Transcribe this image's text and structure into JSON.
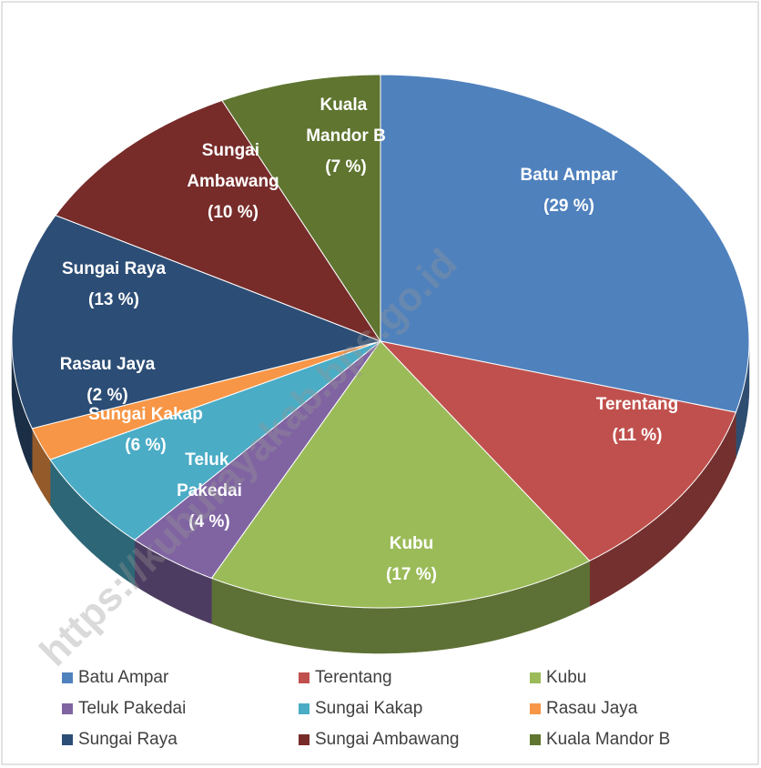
{
  "chart_data": {
    "type": "pie",
    "categories": [
      "Batu Ampar",
      "Terentang",
      "Kubu",
      "Teluk Pakedai",
      "Sungai Kakap",
      "Rasau Jaya",
      "Sungai Raya",
      "Sungai Ambawang",
      "Kuala Mandor B"
    ],
    "values": [
      29,
      11,
      17,
      4,
      6,
      2,
      13,
      10,
      7
    ],
    "value_labels": [
      "(29 %)",
      "(11 %)",
      "(17 %)",
      "(4 %)",
      "(6 %)",
      "(2 %)",
      "(13 %)",
      "(10 %)",
      "(7 %)"
    ],
    "colors": [
      "#4f81bd",
      "#c0504d",
      "#9bbb59",
      "#8064a2",
      "#4bacc6",
      "#f79646",
      "#2c4d75",
      "#772c2a",
      "#5f7530"
    ],
    "legend": "bottom",
    "watermark": "https://kuburayakab.bps.go.id"
  }
}
